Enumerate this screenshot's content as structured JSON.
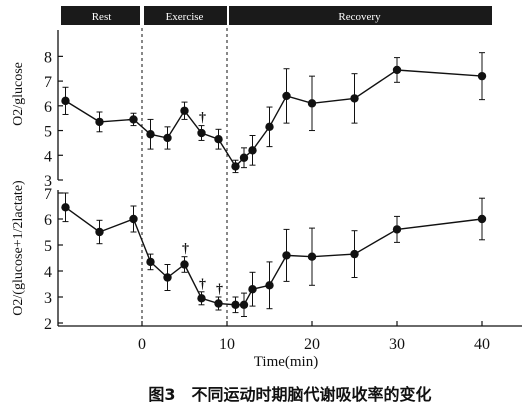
{
  "chart_data": [
    {
      "type": "line",
      "phases": [
        {
          "label": "Rest",
          "x_start": -10,
          "x_end": 0
        },
        {
          "label": "Exercise",
          "x_start": 0,
          "x_end": 10
        },
        {
          "label": "Recovery",
          "x_start": 10,
          "x_end": 42
        }
      ],
      "ylabel": "O2/glucose",
      "ylim": [
        3,
        8.5
      ],
      "yticks": [
        "3",
        "4",
        "5",
        "6",
        "7",
        "8"
      ],
      "xlim": [
        -10,
        42
      ],
      "series": [
        {
          "points": [
            {
              "x": -9,
              "y": 6.2,
              "err": 0.55
            },
            {
              "x": -5,
              "y": 5.35,
              "err": 0.4
            },
            {
              "x": -1,
              "y": 5.45,
              "err": 0.25
            },
            {
              "x": 1,
              "y": 4.85,
              "err": 0.6
            },
            {
              "x": 3,
              "y": 4.7,
              "err": 0.45
            },
            {
              "x": 5,
              "y": 5.8,
              "err": 0.35
            },
            {
              "x": 7,
              "y": 4.9,
              "err": 0.3
            },
            {
              "x": 9,
              "y": 4.65,
              "err": 0.4
            },
            {
              "x": 11,
              "y": 3.55,
              "err": 0.25
            },
            {
              "x": 12,
              "y": 3.9,
              "err": 0.4
            },
            {
              "x": 13,
              "y": 4.2,
              "err": 0.6
            },
            {
              "x": 15,
              "y": 5.15,
              "err": 0.8
            },
            {
              "x": 17,
              "y": 6.4,
              "err": 1.1
            },
            {
              "x": 20,
              "y": 6.1,
              "err": 1.1
            },
            {
              "x": 25,
              "y": 6.3,
              "err": 1.0
            },
            {
              "x": 30,
              "y": 7.45,
              "err": 0.5
            },
            {
              "x": 40,
              "y": 7.2,
              "err": 0.95
            }
          ],
          "daggers": [
            7
          ]
        }
      ]
    },
    {
      "type": "line",
      "ylabel": "O2/(glucose+1/2lactate)",
      "ylim": [
        2,
        7
      ],
      "yticks": [
        "2",
        "3",
        "4",
        "5",
        "6",
        "7"
      ],
      "xlim": [
        -10,
        42
      ],
      "xticks": [
        "0",
        "10",
        "20",
        "30",
        "40"
      ],
      "xlabel": "Time(min)",
      "series": [
        {
          "points": [
            {
              "x": -9,
              "y": 6.45,
              "err": 0.55
            },
            {
              "x": -5,
              "y": 5.5,
              "err": 0.45
            },
            {
              "x": -1,
              "y": 6.0,
              "err": 0.5
            },
            {
              "x": 1,
              "y": 4.35,
              "err": 0.3
            },
            {
              "x": 3,
              "y": 3.75,
              "err": 0.5
            },
            {
              "x": 5,
              "y": 4.25,
              "err": 0.3
            },
            {
              "x": 7,
              "y": 2.95,
              "err": 0.25
            },
            {
              "x": 9,
              "y": 2.75,
              "err": 0.25
            },
            {
              "x": 11,
              "y": 2.7,
              "err": 0.3
            },
            {
              "x": 12,
              "y": 2.7,
              "err": 0.45
            },
            {
              "x": 13,
              "y": 3.3,
              "err": 0.65
            },
            {
              "x": 15,
              "y": 3.45,
              "err": 0.9
            },
            {
              "x": 17,
              "y": 4.6,
              "err": 1.0
            },
            {
              "x": 20,
              "y": 4.55,
              "err": 1.1
            },
            {
              "x": 25,
              "y": 4.65,
              "err": 0.9
            },
            {
              "x": 30,
              "y": 5.6,
              "err": 0.5
            },
            {
              "x": 40,
              "y": 6.0,
              "err": 0.8
            }
          ],
          "daggers": [
            5,
            7,
            9
          ]
        }
      ]
    }
  ],
  "dagger_symbol": "†",
  "caption": "图3　不同运动时期脑代谢吸收率的变化",
  "colors": {
    "ink": "#111111",
    "phase_bar": "#1a1a1a",
    "phase_text": "#ffffff"
  }
}
